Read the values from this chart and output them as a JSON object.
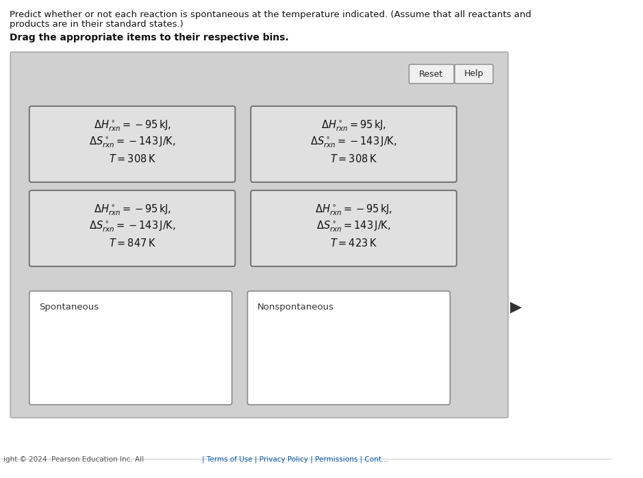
{
  "title_line1": "Predict whether or not each reaction is spontaneous at the temperature indicated. (Assume that all reactants and",
  "title_line2": "products are in their standard states.)",
  "subtitle": "Drag the appropriate items to their respective bins.",
  "bg_color": "#d8d8d8",
  "card_bg": "#e8e8e8",
  "card_border": "#555555",
  "white_bg": "#ffffff",
  "footer_text": "ight © 2024  Pearson Education Inc. All",
  "footer_links": "| Terms of Use | Privacy Policy | Permissions | Cont...",
  "cards": [
    {
      "label_line1": "$\\Delta H^\\circ_{rxn} = -95\\,\\mathrm{kJ},$",
      "label_line2": "$\\Delta S^\\circ_{rxn} = -143\\,\\mathrm{J/K},$",
      "label_line3": "$T = 308\\,\\mathrm{K}$",
      "col": 0,
      "row": 0
    },
    {
      "label_line1": "$\\Delta H^\\circ_{rxn} = 95\\,\\mathrm{kJ},$",
      "label_line2": "$\\Delta S^\\circ_{rxn} = -143\\,\\mathrm{J/K},$",
      "label_line3": "$T = 308\\,\\mathrm{K}$",
      "col": 1,
      "row": 0
    },
    {
      "label_line1": "$\\Delta H^\\circ_{rxn} = -95\\,\\mathrm{kJ},$",
      "label_line2": "$\\Delta S^\\circ_{rxn} = -143\\,\\mathrm{J/K},$",
      "label_line3": "$T = 847\\,\\mathrm{K}$",
      "col": 0,
      "row": 1
    },
    {
      "label_line1": "$\\Delta H^\\circ_{rxn} = -95\\,\\mathrm{kJ},$",
      "label_line2": "$\\Delta S^\\circ_{rxn} = 143\\,\\mathrm{J/K},$",
      "label_line3": "$T = 423\\,\\mathrm{K}$",
      "col": 1,
      "row": 1
    }
  ],
  "bins": [
    {
      "label": "Spontaneous",
      "col": 0
    },
    {
      "label": "Nonspontaneous",
      "col": 1
    }
  ],
  "reset_btn": "Reset",
  "help_btn": "Help"
}
